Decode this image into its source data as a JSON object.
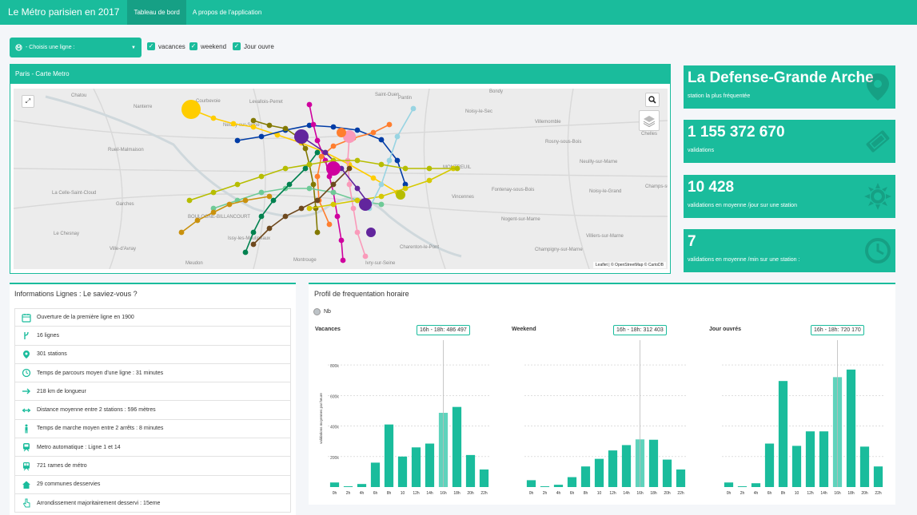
{
  "nav": {
    "brand": "Le Métro parisien en 2017",
    "tabs": [
      {
        "label": "Tableau de bord",
        "active": true
      },
      {
        "label": "A propos de l'application",
        "active": false
      }
    ]
  },
  "filters": {
    "line_select": "- Choisis une ligne :",
    "checkboxes": [
      {
        "label": "vacances",
        "checked": true
      },
      {
        "label": "weekend",
        "checked": true
      },
      {
        "label": "Jour ouvre",
        "checked": true
      }
    ]
  },
  "map": {
    "title": "Paris - Carte Metro",
    "attribution": "Leaflet | © OpenStreetMap © CartoDB",
    "places": [
      "Chatou",
      "Courbevoie",
      "Levallois-Perret",
      "Saint-Ouen",
      "Pantin",
      "Bondy",
      "Nanterre",
      "Neuilly-sur-Seine",
      "Noisy-le-Sec",
      "Villemomble",
      "Rosny-sous-Bois",
      "Rueil-Malmaison",
      "MONTREUIL",
      "Neuilly-sur-Marne",
      "Chelles",
      "La Celle-Saint-Cloud",
      "Fontenay-sous-Bois",
      "Noisy-le-Grand",
      "Champs-sur-Marne",
      "Garches",
      "Vincennes",
      "BOULOGNE-BILLANCOURT",
      "Le Chesnay",
      "Issy-les-Moulineaux",
      "Nogent-sur-Marne",
      "Villiers-sur-Marne",
      "Ville-d'Avray",
      "Charenton-le-Pont",
      "Champigny-sur-Marne",
      "Meudon",
      "Montrouge",
      "Ivry-sur-Seine"
    ]
  },
  "stats": [
    {
      "value": "La Defense-Grande Arche",
      "label": "station la plus fréquentée",
      "icon": "map-marker-icon"
    },
    {
      "value": "1 155 372 670",
      "label": "validations",
      "icon": "ticket-icon"
    },
    {
      "value": "10 428",
      "label": "validations en moyenne /jour sur une station",
      "icon": "sun-icon"
    },
    {
      "value": "7",
      "label": "validations en moyenne /min sur une station :",
      "icon": "clock-icon"
    }
  ],
  "info": {
    "title": "Informations Lignes : Le saviez-vous ?",
    "items": [
      {
        "text": "Ouverture de la première ligne en 1900",
        "icon": "calendar-icon"
      },
      {
        "text": "16 lignes",
        "icon": "branch-icon"
      },
      {
        "text": "301 stations",
        "icon": "map-pin-icon"
      },
      {
        "text": "Temps de parcours moyen d'une ligne : 31 minutes",
        "icon": "clock-icon"
      },
      {
        "text": "218 km de longueur",
        "icon": "arrow-right-icon"
      },
      {
        "text": "Distance moyenne entre 2 stations : 596 mètres",
        "icon": "arrows-horizontal-icon"
      },
      {
        "text": "Temps de marche moyen entre 2 arrêts : 8 minutes",
        "icon": "walking-person-icon"
      },
      {
        "text": "Metro automatique : Ligne 1 et 14",
        "icon": "train-icon"
      },
      {
        "text": "721 rames de métro",
        "icon": "subway-icon"
      },
      {
        "text": "29 communes desservies",
        "icon": "home-icon"
      },
      {
        "text": "Arrondissement majoritairement desservi : 15eme",
        "icon": "pointer-hand-icon"
      }
    ]
  },
  "profile": {
    "title": "Profil de frequentation horaire",
    "legend": "Nb",
    "colors": {
      "bar": "#1abc9c",
      "highlight": "#5fd3bc"
    }
  },
  "chart_data": [
    {
      "type": "bar",
      "title": "Vacances",
      "ylabel": "validations moyennes par heure",
      "categories": [
        "0h",
        "2h",
        "4h",
        "6h",
        "8h",
        "10",
        "12h",
        "14h",
        "16h",
        "18h",
        "20h",
        "22h"
      ],
      "values": [
        30000,
        5000,
        20000,
        160000,
        410000,
        200000,
        260000,
        285000,
        486497,
        525000,
        210000,
        115000
      ],
      "highlight_index": 8,
      "tooltip": "16h - 18h: 486 497",
      "ylim": [
        0,
        900000
      ],
      "yticks": [
        "200k",
        "400k",
        "600k",
        "800k"
      ],
      "grid": true
    },
    {
      "type": "bar",
      "title": "Weekend",
      "categories": [
        "0h",
        "2h",
        "4h",
        "6h",
        "8h",
        "10",
        "12h",
        "14h",
        "16h",
        "18h",
        "20h",
        "22h"
      ],
      "values": [
        45000,
        5000,
        15000,
        65000,
        135000,
        185000,
        240000,
        275000,
        312403,
        310000,
        180000,
        115000
      ],
      "highlight_index": 8,
      "tooltip": "16h - 18h: 312 403",
      "ylim": [
        0,
        900000
      ],
      "yticks": [
        "200k",
        "400k",
        "600k",
        "800k"
      ],
      "grid": true
    },
    {
      "type": "bar",
      "title": "Jour ouvrés",
      "categories": [
        "0h",
        "2h",
        "4h",
        "6h",
        "8h",
        "10",
        "12h",
        "14h",
        "16h",
        "18h",
        "20h",
        "22h"
      ],
      "values": [
        30000,
        5000,
        25000,
        285000,
        695000,
        270000,
        365000,
        365000,
        720170,
        770000,
        265000,
        135000
      ],
      "highlight_index": 8,
      "tooltip": "16h - 18h: 720 170",
      "ylim": [
        0,
        900000
      ],
      "yticks": [
        "200k",
        "400k",
        "600k",
        "800k"
      ],
      "grid": true
    }
  ]
}
